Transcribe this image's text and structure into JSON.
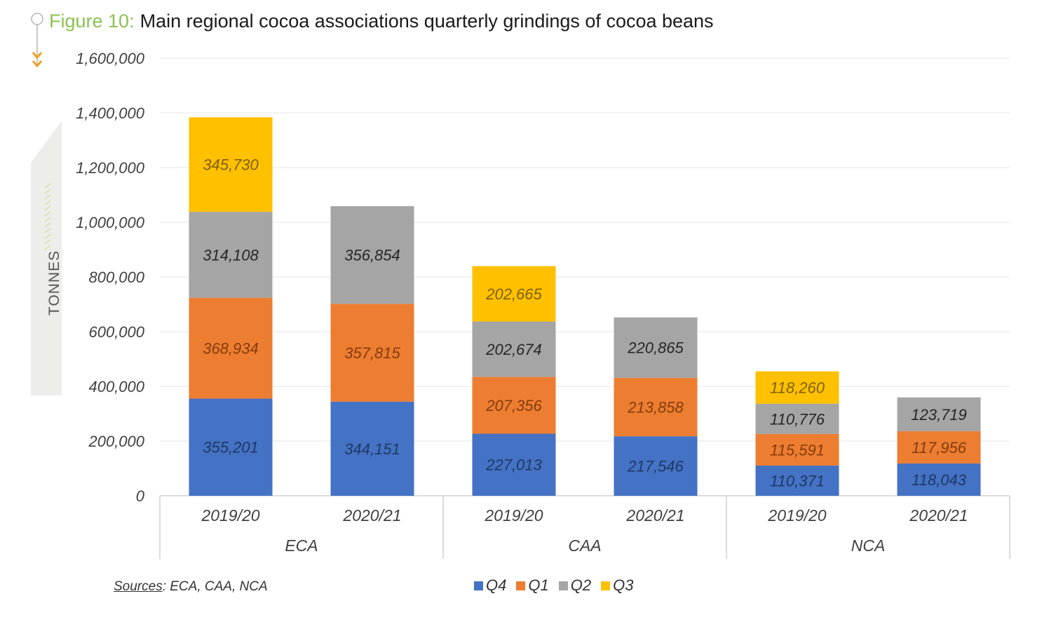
{
  "figure": {
    "number_label": "Figure 10:",
    "title": "Main regional cocoa associations quarterly grindings of cocoa beans"
  },
  "sources": {
    "label": "Sources",
    "text": ": ECA, CAA, NCA"
  },
  "chart_data": {
    "type": "bar",
    "stacked": true,
    "title": "Main regional cocoa associations quarterly grindings of cocoa beans",
    "xlabel": "",
    "ylabel": "TONNES",
    "ylim": [
      0,
      1600000
    ],
    "yticks": [
      0,
      200000,
      400000,
      600000,
      800000,
      1000000,
      1200000,
      1400000,
      1600000
    ],
    "ytick_labels": [
      "0",
      "200,000",
      "400,000",
      "600,000",
      "800,000",
      "1,000,000",
      "1,200,000",
      "1,400,000",
      "1,600,000"
    ],
    "grid": true,
    "legend_position": "bottom",
    "groups": [
      {
        "name": "ECA",
        "categories": [
          "2019/20",
          "2020/21"
        ]
      },
      {
        "name": "CAA",
        "categories": [
          "2019/20",
          "2020/21"
        ]
      },
      {
        "name": "NCA",
        "categories": [
          "2019/20",
          "2020/21"
        ]
      }
    ],
    "categories": [
      "ECA 2019/20",
      "ECA 2020/21",
      "CAA 2019/20",
      "CAA 2020/21",
      "NCA 2019/20",
      "NCA 2020/21"
    ],
    "series": [
      {
        "name": "Q4",
        "color": "#4472c4",
        "label_color": "#1f3864",
        "values": [
          355201,
          344151,
          227013,
          217546,
          110371,
          118043
        ],
        "labels": [
          "355,201",
          "344,151",
          "227,013",
          "217,546",
          "110,371",
          "118,043"
        ]
      },
      {
        "name": "Q1",
        "color": "#ed7d31",
        "label_color": "#843c0c",
        "values": [
          368934,
          357815,
          207356,
          213858,
          115591,
          117956
        ],
        "labels": [
          "368,934",
          "357,815",
          "207,356",
          "213,858",
          "115,591",
          "117,956"
        ]
      },
      {
        "name": "Q2",
        "color": "#a5a5a5",
        "label_color": "#262626",
        "values": [
          314108,
          356854,
          202674,
          220865,
          110776,
          123719
        ],
        "labels": [
          "314,108",
          "356,854",
          "202,674",
          "220,865",
          "110,776",
          "123,719"
        ]
      },
      {
        "name": "Q3",
        "color": "#ffc000",
        "label_color": "#7f6000",
        "values": [
          345730,
          null,
          202665,
          null,
          118260,
          null
        ],
        "labels": [
          "345,730",
          null,
          "202,665",
          null,
          "118,260",
          null
        ]
      }
    ]
  },
  "colors": {
    "figure_label": "#8cc152",
    "accent_arrows": "#f0a020",
    "grid": "#e4e4e4",
    "band": "#ededea"
  }
}
